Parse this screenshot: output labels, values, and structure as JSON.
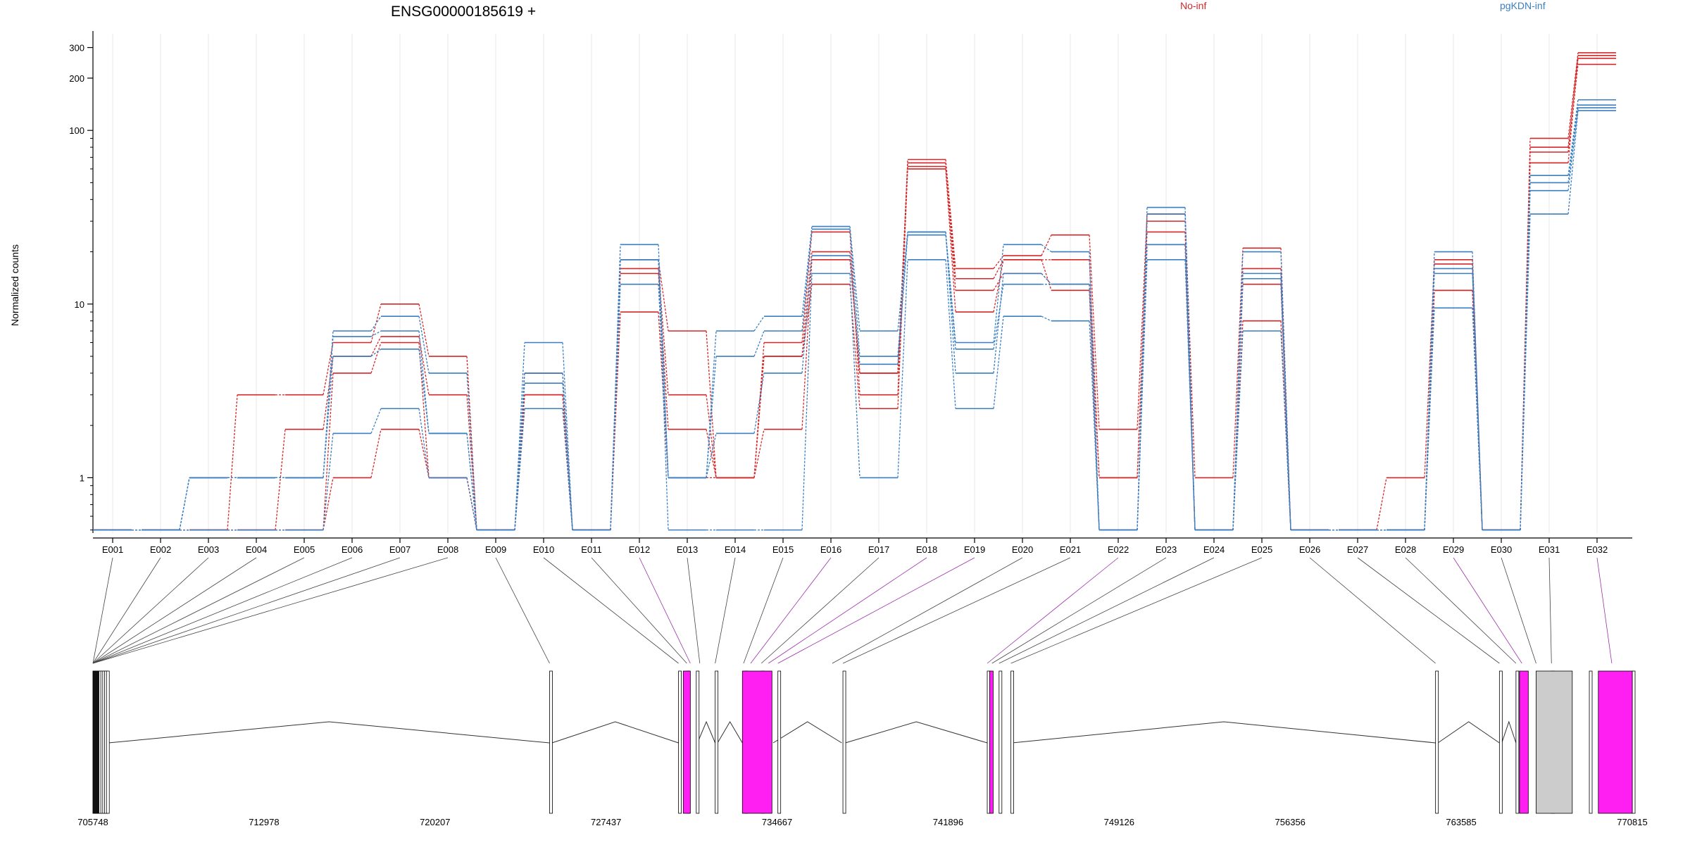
{
  "chart_data": {
    "type": "line",
    "title": "ENSG00000185619 +",
    "ylabel": "Normalized counts",
    "xlabel": "",
    "yscale": "log",
    "ylim": [
      0.48,
      360
    ],
    "grid": true,
    "legend_position": "top-right",
    "yticks": [
      1,
      10,
      100,
      200,
      300
    ],
    "categories": [
      "E001",
      "E002",
      "E003",
      "E004",
      "E005",
      "E006",
      "E007",
      "E008",
      "E009",
      "E010",
      "E011",
      "E012",
      "E013",
      "E014",
      "E015",
      "E016",
      "E017",
      "E018",
      "E019",
      "E020",
      "E021",
      "E022",
      "E023",
      "E024",
      "E025",
      "E026",
      "E027",
      "E028",
      "E029",
      "E030",
      "E031",
      "E032"
    ],
    "colors": {
      "No-inf": "#d62728",
      "pgKDN-inf": "#3a7fc1",
      "exon-highlight": "#ff1ff2",
      "exon-grey": "#cccccc"
    },
    "series": [
      {
        "name": "No-inf",
        "values": [
          0.5,
          0.5,
          0.5,
          3,
          3,
          6,
          10,
          5,
          0.5,
          4,
          0.5,
          18,
          7,
          1,
          6,
          26,
          3,
          68,
          16,
          19,
          25,
          1.9,
          33,
          1,
          21,
          0.5,
          0.5,
          1,
          18,
          0.5,
          90,
          280
        ]
      },
      {
        "name": "No-inf",
        "values": [
          0.5,
          0.5,
          0.5,
          0.5,
          1.9,
          5,
          6.5,
          3,
          0.5,
          3,
          0.5,
          16,
          3,
          1,
          5,
          20,
          4,
          65,
          14,
          18,
          18,
          1,
          30,
          0.5,
          16,
          0.5,
          0.5,
          0.5,
          17,
          0.5,
          80,
          270
        ]
      },
      {
        "name": "No-inf",
        "values": [
          0.5,
          0.5,
          0.5,
          0.5,
          0.5,
          4,
          6,
          1,
          0.5,
          3,
          0.5,
          15,
          1.9,
          1,
          1.9,
          18,
          4,
          62,
          12,
          15,
          13,
          1,
          26,
          0.5,
          13,
          0.5,
          0.5,
          0.5,
          12,
          0.5,
          65,
          260
        ]
      },
      {
        "name": "No-inf",
        "values": [
          0.5,
          0.5,
          0.5,
          0.5,
          0.5,
          1,
          1.9,
          1,
          0.5,
          2.5,
          0.5,
          9,
          1,
          1,
          5,
          13,
          2.5,
          60,
          9,
          18,
          12,
          0.5,
          22,
          0.5,
          8,
          0.5,
          0.5,
          0.5,
          12,
          0.5,
          75,
          240
        ]
      },
      {
        "name": "pgKDN-inf",
        "values": [
          0.5,
          0.5,
          1,
          1,
          1,
          7,
          8.5,
          4,
          0.5,
          6,
          0.5,
          22,
          1,
          7,
          8.5,
          28,
          7,
          26,
          6,
          22,
          20,
          0.5,
          36,
          0.5,
          20,
          0.5,
          0.5,
          0.5,
          20,
          0.5,
          55,
          150
        ]
      },
      {
        "name": "pgKDN-inf",
        "values": [
          0.5,
          0.5,
          1,
          1,
          1,
          6.5,
          7,
          1.8,
          0.5,
          4,
          0.5,
          18,
          1,
          5,
          7,
          27,
          5,
          26,
          4,
          15,
          13,
          0.5,
          33,
          0.5,
          15,
          0.5,
          0.5,
          0.5,
          16,
          0.5,
          50,
          140
        ]
      },
      {
        "name": "pgKDN-inf",
        "values": [
          0.5,
          0.5,
          1,
          1,
          1,
          5,
          5.5,
          1.8,
          0.5,
          3.5,
          0.5,
          13,
          1,
          1.8,
          4,
          19,
          4.5,
          25,
          5.5,
          13,
          13,
          0.5,
          22,
          0.5,
          14,
          0.5,
          0.5,
          0.5,
          15,
          0.5,
          45,
          135
        ]
      },
      {
        "name": "pgKDN-inf",
        "values": [
          0.5,
          0.5,
          0.5,
          0.5,
          0.5,
          1.8,
          2.5,
          1,
          0.5,
          2.5,
          0.5,
          18,
          0.5,
          0.5,
          0.5,
          15,
          1,
          18,
          2.5,
          8.5,
          8,
          0.5,
          18,
          0.5,
          7,
          0.5,
          0.5,
          0.5,
          9.5,
          0.5,
          33,
          130
        ]
      }
    ],
    "gene_model": {
      "genomic_ticks": [
        705748,
        712978,
        720207,
        727437,
        734667,
        741896,
        749126,
        756356,
        763585,
        770815
      ],
      "range": [
        705748,
        770815
      ],
      "exon_starts": [
        705748,
        705830,
        705920,
        706000,
        706080,
        706160,
        706240,
        706320,
        725050,
        730500,
        730850,
        731250,
        732050,
        733300,
        734000,
        734700,
        737450,
        743550,
        744050,
        744550,
        762500,
        765200,
        765900,
        767400,
        769000,
        770815
      ],
      "highlight_exons": [
        [
          730700,
          731000
        ],
        [
          733200,
          734450
        ],
        [
          743650,
          743800
        ],
        [
          766050,
          766420
        ],
        [
          769380,
          772070
        ]
      ],
      "grey_exons": [
        [
          766750,
          768280
        ]
      ],
      "highlight_bins": [
        "E012",
        "E016",
        "E018",
        "E019",
        "E022",
        "E029",
        "E032"
      ]
    }
  }
}
